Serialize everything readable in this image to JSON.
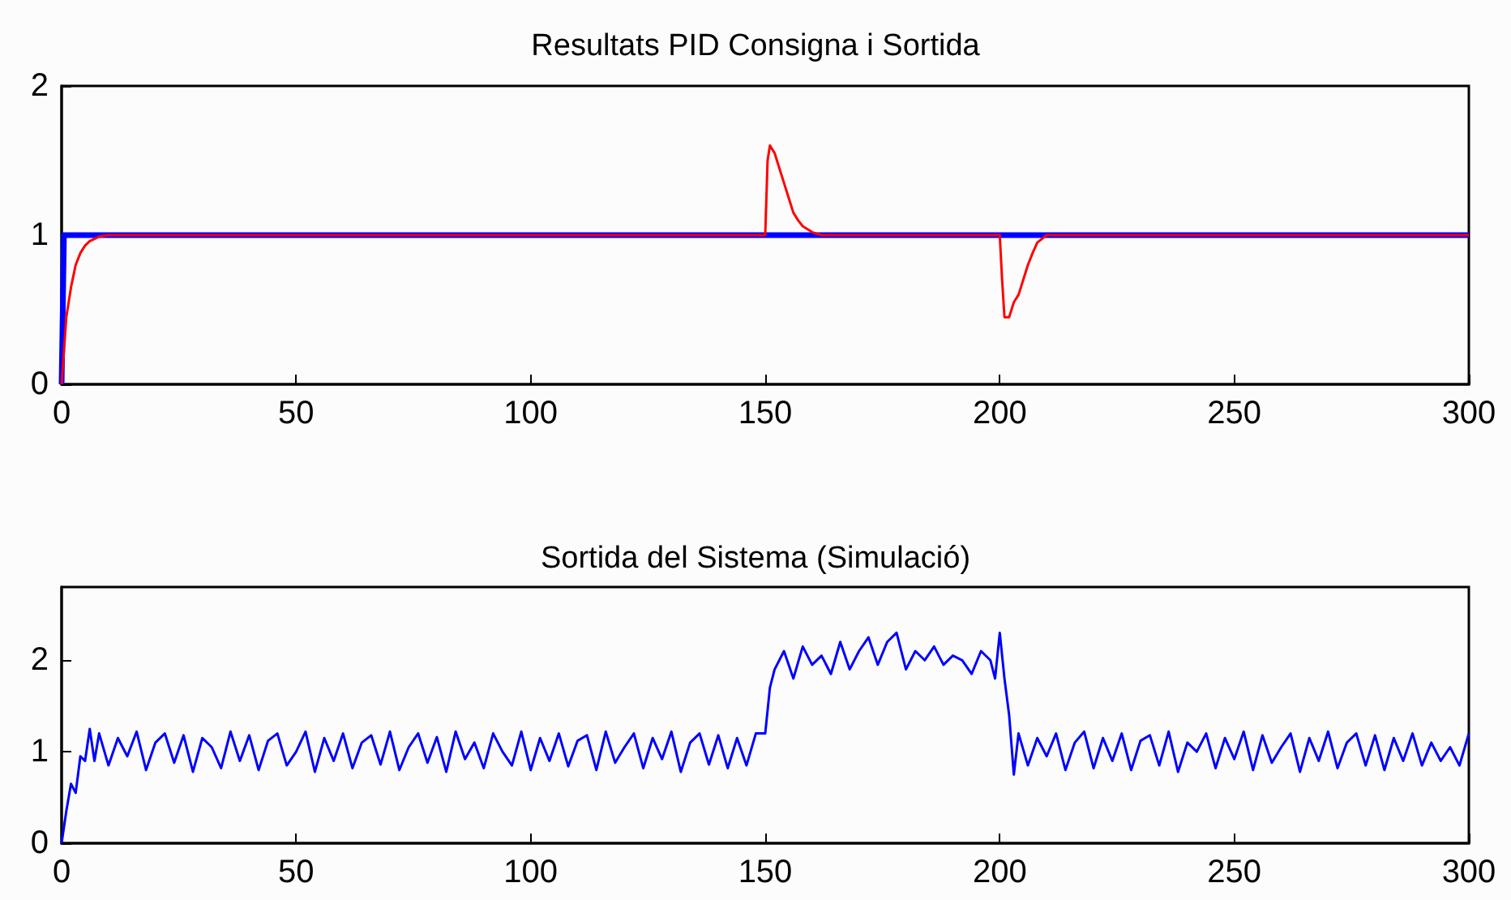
{
  "chart_data": [
    {
      "type": "line",
      "title": "Resultats PID Consigna i Sortida",
      "xlim": [
        0,
        300
      ],
      "xticks": [
        0,
        50,
        100,
        150,
        200,
        250,
        300
      ],
      "ylim": [
        0,
        2
      ],
      "yticks": [
        0,
        1,
        2
      ],
      "marker": "none",
      "line_style": "solid",
      "series": [
        {
          "color": "#0000ff",
          "x": [
            0,
            0.5,
            300
          ],
          "values": [
            0,
            1,
            1
          ]
        },
        {
          "color": "#ff0000",
          "x": [
            0,
            1,
            2,
            3,
            4,
            5,
            6,
            8,
            10,
            150,
            150.5,
            151,
            152,
            153,
            154,
            155,
            156,
            157,
            158,
            160,
            162,
            200,
            200.5,
            201,
            202,
            203,
            204,
            205,
            206,
            207,
            208,
            210,
            300
          ],
          "values": [
            0,
            0.45,
            0.65,
            0.8,
            0.88,
            0.93,
            0.96,
            0.99,
            1,
            1,
            1.5,
            1.6,
            1.55,
            1.45,
            1.35,
            1.25,
            1.15,
            1.1,
            1.06,
            1.02,
            1,
            1,
            0.7,
            0.45,
            0.45,
            0.55,
            0.6,
            0.7,
            0.8,
            0.88,
            0.95,
            1,
            1
          ]
        }
      ]
    },
    {
      "type": "line",
      "title": "Sortida del Sistema (Simulació)",
      "xlim": [
        0,
        300
      ],
      "xticks": [
        0,
        50,
        100,
        150,
        200,
        250,
        300
      ],
      "ylim": [
        0,
        2.8
      ],
      "yticks": [
        0,
        1,
        2
      ],
      "marker": "none",
      "line_style": "solid",
      "series": [
        {
          "color": "#0000ff",
          "x": [
            0,
            1,
            2,
            3,
            4,
            5,
            6,
            7,
            8,
            10,
            12,
            14,
            16,
            18,
            20,
            22,
            24,
            26,
            28,
            30,
            32,
            34,
            36,
            38,
            40,
            42,
            44,
            46,
            48,
            50,
            52,
            54,
            56,
            58,
            60,
            62,
            64,
            66,
            68,
            70,
            72,
            74,
            76,
            78,
            80,
            82,
            84,
            86,
            88,
            90,
            92,
            94,
            96,
            98,
            100,
            102,
            104,
            106,
            108,
            110,
            112,
            114,
            116,
            118,
            120,
            122,
            124,
            126,
            128,
            130,
            132,
            134,
            136,
            138,
            140,
            142,
            144,
            146,
            148,
            150,
            151,
            152,
            154,
            156,
            158,
            160,
            162,
            164,
            166,
            168,
            170,
            172,
            174,
            176,
            178,
            180,
            182,
            184,
            186,
            188,
            190,
            192,
            194,
            196,
            198,
            199,
            200,
            201,
            202,
            203,
            204,
            206,
            208,
            210,
            212,
            214,
            216,
            218,
            220,
            222,
            224,
            226,
            228,
            230,
            232,
            234,
            236,
            238,
            240,
            242,
            244,
            246,
            248,
            250,
            252,
            254,
            256,
            258,
            260,
            262,
            264,
            266,
            268,
            270,
            272,
            274,
            276,
            278,
            280,
            282,
            284,
            286,
            288,
            290,
            292,
            294,
            296,
            298,
            300
          ],
          "values": [
            0,
            0.35,
            0.65,
            0.55,
            0.95,
            0.9,
            1.25,
            0.9,
            1.2,
            0.85,
            1.15,
            0.95,
            1.22,
            0.8,
            1.1,
            1.2,
            0.88,
            1.18,
            0.78,
            1.15,
            1.05,
            0.82,
            1.22,
            0.9,
            1.18,
            0.8,
            1.12,
            1.2,
            0.85,
            1.0,
            1.22,
            0.78,
            1.15,
            0.9,
            1.2,
            0.82,
            1.1,
            1.18,
            0.86,
            1.22,
            0.8,
            1.05,
            1.2,
            0.88,
            1.16,
            0.78,
            1.22,
            0.92,
            1.1,
            0.82,
            1.2,
            1.0,
            0.85,
            1.22,
            0.8,
            1.15,
            0.9,
            1.2,
            0.84,
            1.12,
            1.18,
            0.8,
            1.22,
            0.88,
            1.05,
            1.2,
            0.82,
            1.15,
            0.92,
            1.22,
            0.78,
            1.1,
            1.2,
            0.86,
            1.18,
            0.82,
            1.15,
            0.85,
            1.2,
            1.2,
            1.7,
            1.9,
            2.1,
            1.8,
            2.15,
            1.95,
            2.05,
            1.85,
            2.2,
            1.9,
            2.1,
            2.25,
            1.95,
            2.2,
            2.3,
            1.9,
            2.1,
            2.0,
            2.15,
            1.95,
            2.05,
            2.0,
            1.85,
            2.1,
            2.0,
            1.8,
            2.3,
            1.8,
            1.4,
            0.75,
            1.2,
            0.85,
            1.15,
            0.95,
            1.2,
            0.8,
            1.1,
            1.22,
            0.82,
            1.15,
            0.9,
            1.2,
            0.8,
            1.12,
            1.18,
            0.85,
            1.22,
            0.78,
            1.1,
            1.0,
            1.2,
            0.82,
            1.15,
            0.92,
            1.22,
            0.8,
            1.18,
            0.88,
            1.05,
            1.2,
            0.78,
            1.15,
            0.9,
            1.22,
            0.82,
            1.1,
            1.2,
            0.85,
            1.18,
            0.8,
            1.15,
            0.9,
            1.2,
            0.85,
            1.1,
            0.9,
            1.05,
            0.85,
            1.2
          ]
        }
      ]
    }
  ]
}
